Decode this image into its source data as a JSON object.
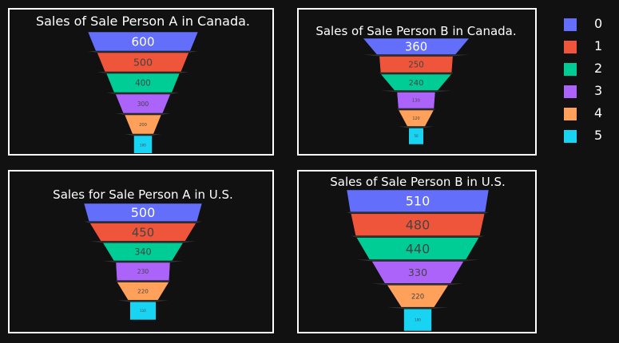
{
  "colors": [
    "#636efa",
    "#ef553b",
    "#00cc96",
    "#ab63fa",
    "#ffa15a",
    "#19d3f3"
  ],
  "legend": [
    "0",
    "1",
    "2",
    "3",
    "4",
    "5"
  ],
  "chart_data": [
    {
      "type": "funnel",
      "title": "Sales of Sale Person A in Canada.",
      "stages": [
        "0",
        "1",
        "2",
        "3",
        "4",
        "5"
      ],
      "values": [
        600,
        500,
        400,
        300,
        200,
        100
      ]
    },
    {
      "type": "funnel",
      "title": "Sales of Sale Person B in Canada.",
      "stages": [
        "0",
        "1",
        "2",
        "3",
        "4",
        "5"
      ],
      "values": [
        360,
        250,
        240,
        130,
        120,
        50
      ]
    },
    {
      "type": "funnel",
      "title": "Sales for Sale Person A in U.S.",
      "stages": [
        "0",
        "1",
        "2",
        "3",
        "4",
        "5"
      ],
      "values": [
        500,
        450,
        340,
        230,
        220,
        110
      ]
    },
    {
      "type": "funnel",
      "title": "Sales of Sale Person B in U.S.",
      "stages": [
        "0",
        "1",
        "2",
        "3",
        "4",
        "5"
      ],
      "values": [
        510,
        480,
        440,
        330,
        220,
        100
      ]
    }
  ]
}
